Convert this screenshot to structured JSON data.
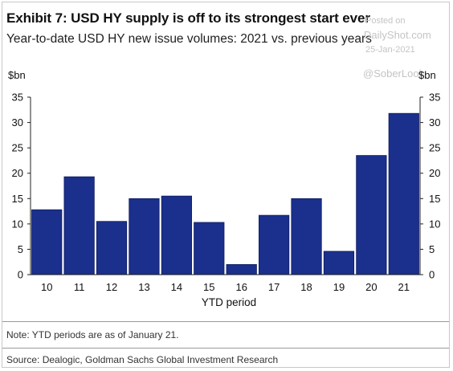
{
  "title": "Exhibit 7: USD HY supply is off to its strongest start ever",
  "subtitle": "Year-to-date USD HY new issue volumes: 2021 vs. previous years",
  "watermark": {
    "posted": "Posted on",
    "site": "DailyShot.com",
    "date": "25-Jan-2021",
    "handle": "@SoberLook"
  },
  "note": "Note: YTD periods are as of January 21.",
  "source": "Source: Dealogic, Goldman Sachs Global Investment Research",
  "colors": {
    "bar": "#1b2f8c",
    "bar_edge": "#0f1c5e",
    "axis": "#222222"
  },
  "chart_data": {
    "type": "bar",
    "categories": [
      "10",
      "11",
      "12",
      "13",
      "14",
      "15",
      "16",
      "17",
      "18",
      "19",
      "20",
      "21"
    ],
    "values": [
      12.8,
      19.3,
      10.5,
      15.0,
      15.5,
      10.3,
      2.0,
      11.7,
      15.0,
      4.6,
      23.5,
      31.8
    ],
    "xlabel": "YTD period",
    "ylabel_left": "$bn",
    "ylabel_right": "$bn",
    "ylim": [
      0,
      35
    ],
    "yticks": [
      0,
      5,
      10,
      15,
      20,
      25,
      30,
      35
    ],
    "grid": false
  }
}
